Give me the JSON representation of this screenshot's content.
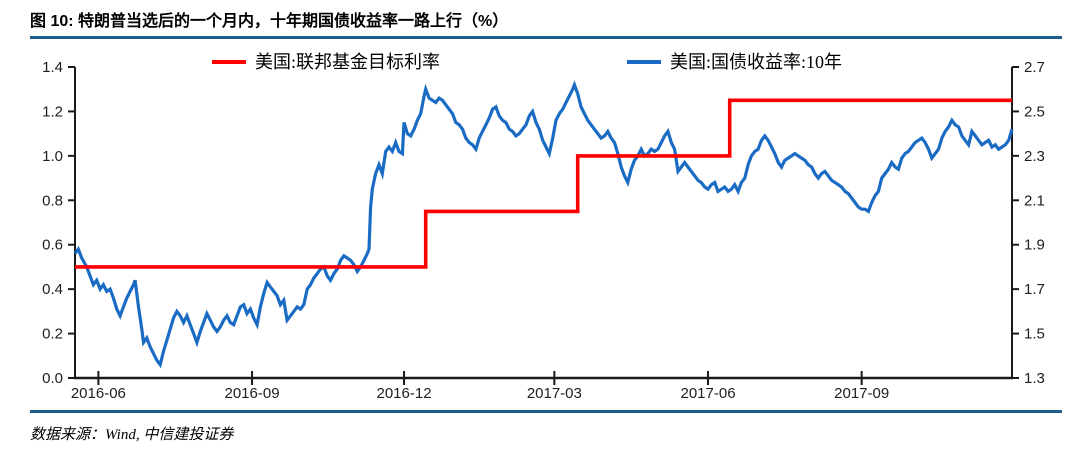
{
  "header": {
    "title": "图 10: 特朗普当选后的一个月内，十年期国债收益率一路上行（%）"
  },
  "footer": {
    "source": "数据来源：Wind, 中信建投证券"
  },
  "colors": {
    "divider": "#1F5E8A",
    "fed_funds_line": "#FF0000",
    "treasury_line": "#1A6BC4",
    "axis": "#1A1A1A",
    "tick_text": "#202020"
  },
  "chart_data": {
    "type": "line",
    "title": "图 10: 特朗普当选后的一个月内，十年期国债收益率一路上行（%）",
    "grid": false,
    "legend_position": "top",
    "x_start_date": "2016-05-18",
    "x_domain": [
      0,
      561
    ],
    "x_ticks": [
      {
        "label": "2016-06",
        "day": 14
      },
      {
        "label": "2016-09",
        "day": 106
      },
      {
        "label": "2016-12",
        "day": 197
      },
      {
        "label": "2017-03",
        "day": 287
      },
      {
        "label": "2017-06",
        "day": 379
      },
      {
        "label": "2017-09",
        "day": 471
      }
    ],
    "left_axis": {
      "min": 0.0,
      "max": 1.4,
      "ticks": [
        "1.4",
        "1.2",
        "1.0",
        "0.8",
        "0.6",
        "0.4",
        "0.2",
        "0.0"
      ]
    },
    "right_axis": {
      "min": 1.3,
      "max": 2.7,
      "ticks": [
        "2.7",
        "2.5",
        "2.3",
        "2.1",
        "1.9",
        "1.7",
        "1.5",
        "1.3"
      ]
    },
    "series": [
      {
        "name": "美国:联邦基金目标利率",
        "axis": "left",
        "color": "#FF0000",
        "type": "step",
        "points": [
          [
            0,
            0.5
          ],
          [
            210,
            0.5
          ],
          [
            210,
            0.75
          ],
          [
            301,
            0.75
          ],
          [
            301,
            1.0
          ],
          [
            392,
            1.0
          ],
          [
            392,
            1.25
          ],
          [
            561,
            1.25
          ]
        ]
      },
      {
        "name": "美国:国债收益率:10年",
        "axis": "right",
        "color": "#1A6BC4",
        "type": "line",
        "points": [
          [
            0,
            1.86
          ],
          [
            2,
            1.88
          ],
          [
            4,
            1.84
          ],
          [
            7,
            1.8
          ],
          [
            9,
            1.76
          ],
          [
            11,
            1.72
          ],
          [
            13,
            1.74
          ],
          [
            15,
            1.7
          ],
          [
            17,
            1.72
          ],
          [
            19,
            1.69
          ],
          [
            21,
            1.7
          ],
          [
            23,
            1.66
          ],
          [
            25,
            1.61
          ],
          [
            27,
            1.58
          ],
          [
            29,
            1.62
          ],
          [
            31,
            1.66
          ],
          [
            33,
            1.69
          ],
          [
            35,
            1.72
          ],
          [
            36,
            1.74
          ],
          [
            38,
            1.62
          ],
          [
            40,
            1.52
          ],
          [
            41,
            1.46
          ],
          [
            43,
            1.48
          ],
          [
            45,
            1.44
          ],
          [
            47,
            1.41
          ],
          [
            49,
            1.38
          ],
          [
            51,
            1.36
          ],
          [
            53,
            1.42
          ],
          [
            55,
            1.47
          ],
          [
            57,
            1.52
          ],
          [
            59,
            1.57
          ],
          [
            61,
            1.6
          ],
          [
            63,
            1.58
          ],
          [
            65,
            1.55
          ],
          [
            67,
            1.58
          ],
          [
            69,
            1.54
          ],
          [
            71,
            1.5
          ],
          [
            73,
            1.46
          ],
          [
            75,
            1.51
          ],
          [
            77,
            1.55
          ],
          [
            79,
            1.59
          ],
          [
            81,
            1.56
          ],
          [
            83,
            1.53
          ],
          [
            85,
            1.51
          ],
          [
            87,
            1.53
          ],
          [
            89,
            1.56
          ],
          [
            91,
            1.58
          ],
          [
            93,
            1.55
          ],
          [
            95,
            1.54
          ],
          [
            97,
            1.58
          ],
          [
            99,
            1.62
          ],
          [
            101,
            1.63
          ],
          [
            103,
            1.59
          ],
          [
            105,
            1.61
          ],
          [
            107,
            1.57
          ],
          [
            109,
            1.54
          ],
          [
            111,
            1.62
          ],
          [
            113,
            1.68
          ],
          [
            115,
            1.73
          ],
          [
            117,
            1.71
          ],
          [
            119,
            1.69
          ],
          [
            121,
            1.67
          ],
          [
            123,
            1.63
          ],
          [
            125,
            1.65
          ],
          [
            127,
            1.56
          ],
          [
            129,
            1.58
          ],
          [
            131,
            1.6
          ],
          [
            133,
            1.62
          ],
          [
            135,
            1.61
          ],
          [
            137,
            1.63
          ],
          [
            139,
            1.7
          ],
          [
            141,
            1.72
          ],
          [
            143,
            1.75
          ],
          [
            145,
            1.77
          ],
          [
            147,
            1.79
          ],
          [
            149,
            1.8
          ],
          [
            151,
            1.76
          ],
          [
            153,
            1.74
          ],
          [
            155,
            1.77
          ],
          [
            157,
            1.79
          ],
          [
            159,
            1.83
          ],
          [
            161,
            1.85
          ],
          [
            163,
            1.84
          ],
          [
            165,
            1.83
          ],
          [
            167,
            1.81
          ],
          [
            169,
            1.78
          ],
          [
            171,
            1.8
          ],
          [
            173,
            1.83
          ],
          [
            175,
            1.86
          ],
          [
            176,
            1.88
          ],
          [
            177,
            2.07
          ],
          [
            178,
            2.15
          ],
          [
            180,
            2.22
          ],
          [
            182,
            2.26
          ],
          [
            184,
            2.22
          ],
          [
            186,
            2.32
          ],
          [
            188,
            2.34
          ],
          [
            190,
            2.32
          ],
          [
            192,
            2.36
          ],
          [
            194,
            2.32
          ],
          [
            196,
            2.31
          ],
          [
            197,
            2.45
          ],
          [
            199,
            2.4
          ],
          [
            201,
            2.39
          ],
          [
            203,
            2.42
          ],
          [
            205,
            2.46
          ],
          [
            207,
            2.49
          ],
          [
            209,
            2.57
          ],
          [
            210,
            2.6
          ],
          [
            212,
            2.56
          ],
          [
            214,
            2.55
          ],
          [
            216,
            2.54
          ],
          [
            218,
            2.56
          ],
          [
            220,
            2.55
          ],
          [
            222,
            2.53
          ],
          [
            224,
            2.51
          ],
          [
            226,
            2.49
          ],
          [
            228,
            2.45
          ],
          [
            230,
            2.44
          ],
          [
            232,
            2.42
          ],
          [
            234,
            2.38
          ],
          [
            236,
            2.36
          ],
          [
            238,
            2.35
          ],
          [
            240,
            2.33
          ],
          [
            242,
            2.38
          ],
          [
            244,
            2.41
          ],
          [
            246,
            2.44
          ],
          [
            248,
            2.47
          ],
          [
            250,
            2.51
          ],
          [
            252,
            2.52
          ],
          [
            254,
            2.48
          ],
          [
            256,
            2.46
          ],
          [
            258,
            2.45
          ],
          [
            260,
            2.42
          ],
          [
            262,
            2.41
          ],
          [
            264,
            2.39
          ],
          [
            266,
            2.4
          ],
          [
            268,
            2.42
          ],
          [
            270,
            2.44
          ],
          [
            272,
            2.48
          ],
          [
            274,
            2.5
          ],
          [
            276,
            2.45
          ],
          [
            278,
            2.42
          ],
          [
            280,
            2.37
          ],
          [
            282,
            2.34
          ],
          [
            284,
            2.31
          ],
          [
            286,
            2.38
          ],
          [
            288,
            2.46
          ],
          [
            290,
            2.49
          ],
          [
            292,
            2.51
          ],
          [
            294,
            2.54
          ],
          [
            296,
            2.57
          ],
          [
            298,
            2.6
          ],
          [
            299,
            2.62
          ],
          [
            301,
            2.58
          ],
          [
            303,
            2.52
          ],
          [
            305,
            2.49
          ],
          [
            307,
            2.46
          ],
          [
            309,
            2.44
          ],
          [
            311,
            2.42
          ],
          [
            313,
            2.4
          ],
          [
            315,
            2.38
          ],
          [
            317,
            2.39
          ],
          [
            319,
            2.41
          ],
          [
            321,
            2.38
          ],
          [
            323,
            2.36
          ],
          [
            325,
            2.31
          ],
          [
            327,
            2.25
          ],
          [
            329,
            2.21
          ],
          [
            331,
            2.18
          ],
          [
            333,
            2.24
          ],
          [
            335,
            2.28
          ],
          [
            337,
            2.3
          ],
          [
            339,
            2.33
          ],
          [
            341,
            2.3
          ],
          [
            343,
            2.31
          ],
          [
            345,
            2.33
          ],
          [
            347,
            2.32
          ],
          [
            349,
            2.33
          ],
          [
            351,
            2.36
          ],
          [
            353,
            2.39
          ],
          [
            355,
            2.41
          ],
          [
            357,
            2.36
          ],
          [
            359,
            2.33
          ],
          [
            361,
            2.23
          ],
          [
            363,
            2.25
          ],
          [
            365,
            2.27
          ],
          [
            367,
            2.25
          ],
          [
            369,
            2.23
          ],
          [
            371,
            2.21
          ],
          [
            373,
            2.19
          ],
          [
            375,
            2.18
          ],
          [
            377,
            2.16
          ],
          [
            379,
            2.15
          ],
          [
            381,
            2.17
          ],
          [
            383,
            2.18
          ],
          [
            385,
            2.14
          ],
          [
            387,
            2.15
          ],
          [
            389,
            2.16
          ],
          [
            391,
            2.14
          ],
          [
            393,
            2.15
          ],
          [
            395,
            2.17
          ],
          [
            397,
            2.14
          ],
          [
            399,
            2.18
          ],
          [
            401,
            2.2
          ],
          [
            403,
            2.26
          ],
          [
            405,
            2.3
          ],
          [
            407,
            2.32
          ],
          [
            409,
            2.33
          ],
          [
            411,
            2.37
          ],
          [
            413,
            2.39
          ],
          [
            415,
            2.37
          ],
          [
            417,
            2.34
          ],
          [
            419,
            2.31
          ],
          [
            421,
            2.27
          ],
          [
            423,
            2.25
          ],
          [
            425,
            2.28
          ],
          [
            427,
            2.29
          ],
          [
            429,
            2.3
          ],
          [
            431,
            2.31
          ],
          [
            433,
            2.3
          ],
          [
            435,
            2.29
          ],
          [
            437,
            2.28
          ],
          [
            439,
            2.26
          ],
          [
            441,
            2.25
          ],
          [
            443,
            2.22
          ],
          [
            445,
            2.2
          ],
          [
            447,
            2.22
          ],
          [
            449,
            2.23
          ],
          [
            451,
            2.21
          ],
          [
            453,
            2.19
          ],
          [
            455,
            2.18
          ],
          [
            457,
            2.17
          ],
          [
            459,
            2.16
          ],
          [
            461,
            2.14
          ],
          [
            463,
            2.13
          ],
          [
            465,
            2.11
          ],
          [
            467,
            2.09
          ],
          [
            469,
            2.07
          ],
          [
            471,
            2.06
          ],
          [
            473,
            2.06
          ],
          [
            475,
            2.05
          ],
          [
            477,
            2.09
          ],
          [
            479,
            2.12
          ],
          [
            481,
            2.14
          ],
          [
            483,
            2.2
          ],
          [
            485,
            2.22
          ],
          [
            487,
            2.24
          ],
          [
            489,
            2.27
          ],
          [
            491,
            2.25
          ],
          [
            493,
            2.24
          ],
          [
            495,
            2.29
          ],
          [
            497,
            2.31
          ],
          [
            499,
            2.32
          ],
          [
            501,
            2.34
          ],
          [
            503,
            2.36
          ],
          [
            505,
            2.37
          ],
          [
            507,
            2.38
          ],
          [
            509,
            2.36
          ],
          [
            511,
            2.33
          ],
          [
            513,
            2.29
          ],
          [
            515,
            2.31
          ],
          [
            517,
            2.33
          ],
          [
            519,
            2.38
          ],
          [
            521,
            2.41
          ],
          [
            523,
            2.43
          ],
          [
            525,
            2.46
          ],
          [
            527,
            2.44
          ],
          [
            529,
            2.43
          ],
          [
            531,
            2.39
          ],
          [
            533,
            2.37
          ],
          [
            535,
            2.35
          ],
          [
            537,
            2.41
          ],
          [
            539,
            2.39
          ],
          [
            541,
            2.37
          ],
          [
            543,
            2.35
          ],
          [
            545,
            2.36
          ],
          [
            547,
            2.37
          ],
          [
            549,
            2.34
          ],
          [
            551,
            2.35
          ],
          [
            553,
            2.33
          ],
          [
            555,
            2.34
          ],
          [
            557,
            2.35
          ],
          [
            559,
            2.37
          ],
          [
            561,
            2.42
          ]
        ]
      }
    ]
  }
}
